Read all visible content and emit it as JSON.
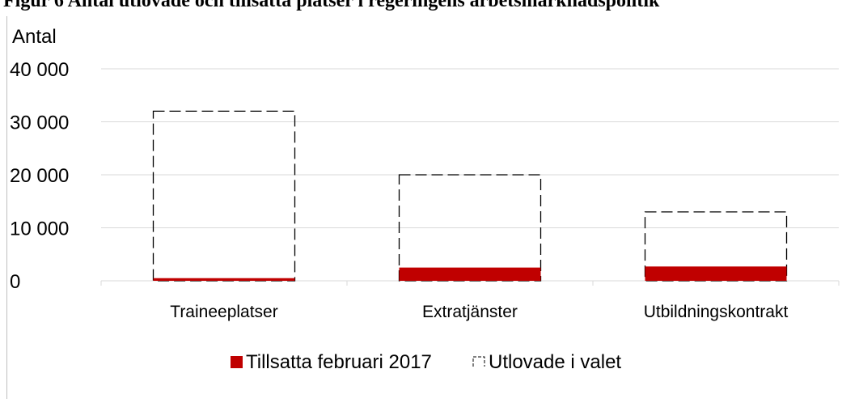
{
  "chart_data": {
    "type": "bar",
    "title": "Figur 6 Antal utlovade och tillsatta platser i regeringens arbetsmarknadspolitik",
    "y_label": "Antal",
    "categories": [
      "Traineeplatser",
      "Extratjänster",
      "Utbildningskontrakt"
    ],
    "series": [
      {
        "name": "Tillsatta februari 2017",
        "color": "#c00000",
        "outline": false,
        "values": [
          500,
          2500,
          2700
        ]
      },
      {
        "name": "Utlovade i valet",
        "color": "#000000",
        "outline": true,
        "values": [
          32000,
          20000,
          13000
        ]
      }
    ],
    "ylim": [
      0,
      40000
    ],
    "yticks": [
      0,
      {
        "value": 10000,
        "label": "10 000"
      },
      {
        "value": 20000,
        "label": "20 000"
      },
      {
        "value": 30000,
        "label": "30 000"
      },
      {
        "value": 40000,
        "label": "40 000"
      }
    ],
    "grid": true,
    "legend": "bottom"
  }
}
